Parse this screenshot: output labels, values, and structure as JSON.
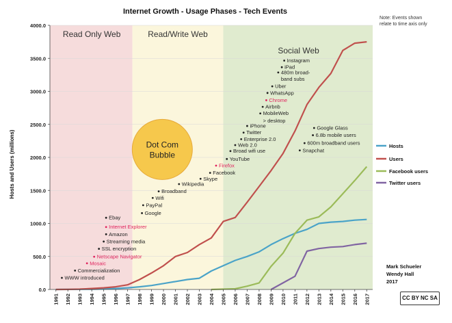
{
  "chart_data": {
    "type": "line",
    "title": "Internet Growth - Usage Phases - Tech Events",
    "note": [
      "Note: Events shown",
      "relate to time axis only"
    ],
    "xlabel": "",
    "ylabel": "Hosts and Users (millions)",
    "ylim": [
      0,
      4000
    ],
    "yticks": [
      0,
      500,
      1000,
      1500,
      2000,
      2500,
      3000,
      3500,
      4000
    ],
    "ytick_labels": [
      "0.0",
      "500.0",
      "1000.0",
      "1500.0",
      "2000.0",
      "2500.0",
      "3000.0",
      "3500.0",
      "4000.0"
    ],
    "x": [
      1991,
      1992,
      1993,
      1994,
      1995,
      1996,
      1997,
      1998,
      1999,
      2000,
      2001,
      2002,
      2003,
      2004,
      2005,
      2006,
      2007,
      2008,
      2009,
      2010,
      2011,
      2012,
      2013,
      2014,
      2015,
      2016,
      2017
    ],
    "phases": [
      {
        "label": "Read Only Web",
        "start": 1990.5,
        "end": 1997.4,
        "color": "#f6dcdc"
      },
      {
        "label": "Read/Write Web",
        "start": 1997.4,
        "end": 2005.0,
        "color": "#fbf6dc"
      },
      {
        "label": "Social Web",
        "start": 2005.0,
        "end": 2017.5,
        "color": "#e0ebcf"
      }
    ],
    "bubble": {
      "label": [
        "Dot Com",
        "Bubble"
      ],
      "color": "#f6c84c"
    },
    "series": [
      {
        "name": "Hosts",
        "color": "#4aa3c8",
        "x": [
          1991,
          1992,
          1993,
          1994,
          1995,
          1996,
          1997,
          1998,
          1999,
          2000,
          2001,
          2002,
          2003,
          2004,
          2005,
          2006,
          2007,
          2008,
          2009,
          2010,
          2011,
          2012,
          2013,
          2014,
          2015,
          2016,
          2017
        ],
        "values": [
          0,
          1,
          2,
          4,
          7,
          15,
          25,
          40,
          60,
          90,
          120,
          150,
          170,
          280,
          360,
          440,
          500,
          570,
          680,
          770,
          850,
          910,
          1000,
          1020,
          1030,
          1050,
          1060
        ]
      },
      {
        "name": "Users",
        "color": "#c0504d",
        "x": [
          1991,
          1992,
          1993,
          1994,
          1995,
          1996,
          1997,
          1998,
          1999,
          2000,
          2001,
          2002,
          2003,
          2004,
          2005,
          2006,
          2007,
          2008,
          2009,
          2010,
          2011,
          2012,
          2013,
          2014,
          2015,
          2016,
          2017
        ],
        "values": [
          0,
          1,
          5,
          15,
          25,
          40,
          70,
          150,
          250,
          360,
          500,
          560,
          680,
          780,
          1030,
          1090,
          1320,
          1560,
          1800,
          2060,
          2400,
          2800,
          3060,
          3270,
          3620,
          3730,
          3750
        ]
      },
      {
        "name": "Facebook users",
        "color": "#9bbb59",
        "x": [
          2004,
          2005,
          2006,
          2007,
          2008,
          2009,
          2010,
          2011,
          2012,
          2013,
          2014,
          2015,
          2016,
          2017
        ],
        "values": [
          0,
          5,
          10,
          50,
          100,
          350,
          550,
          850,
          1050,
          1100,
          1250,
          1450,
          1650,
          1860
        ]
      },
      {
        "name": "Twitter users",
        "color": "#8064a2",
        "x": [
          2009,
          2010,
          2011,
          2012,
          2013,
          2014,
          2015,
          2016,
          2017
        ],
        "values": [
          0,
          100,
          200,
          580,
          620,
          640,
          650,
          680,
          700
        ]
      }
    ],
    "events": [
      {
        "label": "WWW introduced",
        "x": 1991.5,
        "y": 150,
        "color": "#222222"
      },
      {
        "label": "Commercialization",
        "x": 1992.6,
        "y": 260,
        "color": "#222222"
      },
      {
        "label": "Mosaic",
        "x": 1993.6,
        "y": 370,
        "color": "#e0245e"
      },
      {
        "label": "Netscape Navigator",
        "x": 1994.2,
        "y": 470,
        "color": "#e0245e"
      },
      {
        "label": "SSL encryption",
        "x": 1994.6,
        "y": 590,
        "color": "#222222"
      },
      {
        "label": "Streaming media",
        "x": 1995.0,
        "y": 700,
        "color": "#222222"
      },
      {
        "label": "Amazon",
        "x": 1995.2,
        "y": 810,
        "color": "#222222"
      },
      {
        "label": "Internet Explorer",
        "x": 1995.2,
        "y": 920,
        "color": "#e0245e"
      },
      {
        "label": "Ebay",
        "x": 1995.2,
        "y": 1060,
        "color": "#222222"
      },
      {
        "label": "Google",
        "x": 1998.2,
        "y": 1130,
        "color": "#222222"
      },
      {
        "label": "PayPal",
        "x": 1998.3,
        "y": 1250,
        "color": "#222222"
      },
      {
        "label": "Wifi",
        "x": 1999.1,
        "y": 1360,
        "color": "#222222"
      },
      {
        "label": "Broadband",
        "x": 1999.6,
        "y": 1460,
        "color": "#222222"
      },
      {
        "label": "Wikipedia",
        "x": 2001.3,
        "y": 1570,
        "color": "#222222"
      },
      {
        "label": "Skype",
        "x": 2003.1,
        "y": 1650,
        "color": "#222222"
      },
      {
        "label": "Facebook",
        "x": 2003.9,
        "y": 1740,
        "color": "#222222"
      },
      {
        "label": "Firefox",
        "x": 2004.4,
        "y": 1850,
        "color": "#e0245e"
      },
      {
        "label": "YouTube",
        "x": 2005.3,
        "y": 1950,
        "color": "#222222"
      },
      {
        "label": "Broad wifi use",
        "x": 2005.6,
        "y": 2070,
        "color": "#222222"
      },
      {
        "label": "Web 2.0",
        "x": 2006.0,
        "y": 2160,
        "color": "#222222"
      },
      {
        "label": "Enterprise 2.0",
        "x": 2006.5,
        "y": 2250,
        "color": "#222222"
      },
      {
        "label": "Twitter",
        "x": 2006.7,
        "y": 2350,
        "color": "#222222"
      },
      {
        "label": "iPhone",
        "x": 2007.0,
        "y": 2450,
        "color": "#222222"
      },
      {
        "label": "MobileWeb",
        "x": 2008.1,
        "y": 2640,
        "color": "#222222"
      },
      {
        "label": "> desktop",
        "x": 2008.1,
        "y": 2530,
        "color": "#222222",
        "nodot": true
      },
      {
        "label": "Airbnb",
        "x": 2008.3,
        "y": 2740,
        "color": "#222222"
      },
      {
        "label": "Chrome",
        "x": 2008.6,
        "y": 2840,
        "color": "#e0245e"
      },
      {
        "label": "WhatsApp",
        "x": 2008.7,
        "y": 2950,
        "color": "#222222"
      },
      {
        "label": "Uber",
        "x": 2009.1,
        "y": 3050,
        "color": "#222222"
      },
      {
        "label": "480m broad-",
        "x": 2009.6,
        "y": 3260,
        "color": "#222222"
      },
      {
        "label": "band subs",
        "x": 2009.6,
        "y": 3160,
        "color": "#222222",
        "nodot": true
      },
      {
        "label": "iPad",
        "x": 2009.9,
        "y": 3340,
        "color": "#222222"
      },
      {
        "label": "Instagram",
        "x": 2010.1,
        "y": 3440,
        "color": "#222222"
      },
      {
        "label": "Snapchat",
        "x": 2011.4,
        "y": 2080,
        "color": "#222222"
      },
      {
        "label": "600m broadband users",
        "x": 2011.8,
        "y": 2190,
        "color": "#222222"
      },
      {
        "label": "6.8b mobile users",
        "x": 2012.5,
        "y": 2310,
        "color": "#222222"
      },
      {
        "label": "Google Glass",
        "x": 2012.6,
        "y": 2420,
        "color": "#222222"
      }
    ],
    "credits": [
      "Mark Schueler",
      "Wendy Hall",
      "2017"
    ],
    "license": "CC BY NC SA"
  }
}
